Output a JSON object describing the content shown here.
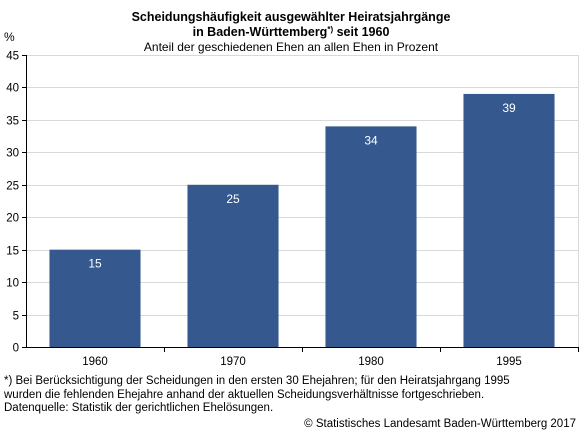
{
  "chart_data": {
    "type": "bar",
    "title_main": "Scheidungshäufigkeit ausgewählter Heiratsjahrgänge",
    "title_line2": "in Baden-Württemberg",
    "title_sup": "*)",
    "title_tail": " seit 1960",
    "subtitle": "Anteil der geschiedenen Ehen an allen Ehen in Prozent",
    "ylabel": "%",
    "categories": [
      "1960",
      "1970",
      "1980",
      "1995"
    ],
    "values": [
      15,
      25,
      34,
      39
    ],
    "ylim": [
      0,
      45
    ],
    "yticks": [
      0,
      5,
      10,
      15,
      20,
      25,
      30,
      35,
      40,
      45
    ],
    "bar_color": "#35598f",
    "grid": true,
    "legend": "none"
  },
  "footnote": {
    "line1": "*) Bei Berücksichtigung der Scheidungen in den ersten 30 Ehejahren; für den Heiratsjahrgang 1995",
    "line2": "wurden die fehlenden Ehejahre anhand der aktuellen Scheidungsverhältnisse fortgeschrieben.",
    "line3": "Datenquelle: Statistik der gerichtlichen Ehelösungen."
  },
  "copyright": "© Statistisches Landesamt Baden-Württemberg 2017"
}
